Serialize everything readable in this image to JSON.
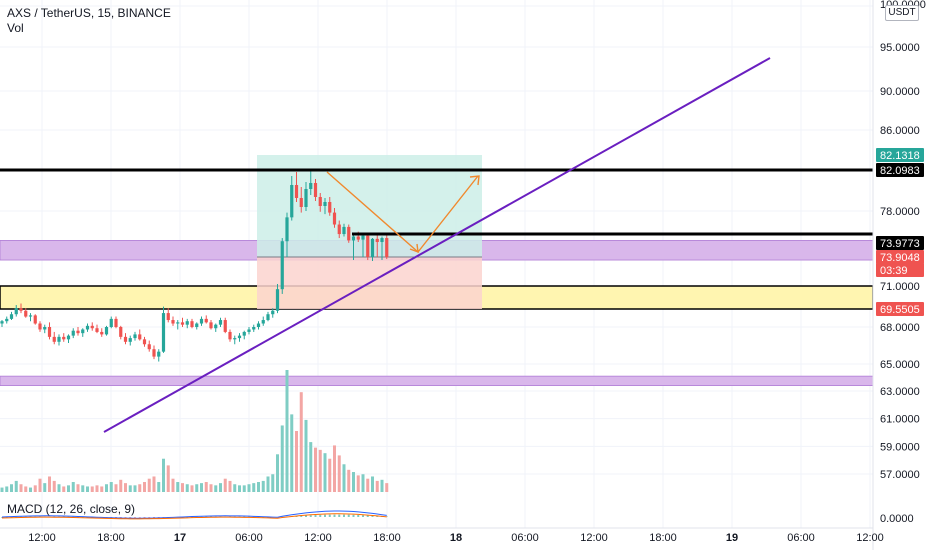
{
  "header": {
    "symbol": "AXS / TetherUS, 15, BINANCE",
    "volume_label": "Vol"
  },
  "macd_label": "MACD (12, 26, close, 9)",
  "price_axis": {
    "unit": "USDT",
    "ticks": [
      {
        "price": 100,
        "label": "100.0000"
      },
      {
        "price": 95,
        "label": "95.0000"
      },
      {
        "price": 90,
        "label": "90.0000"
      },
      {
        "price": 86,
        "label": "86.0000"
      },
      {
        "price": 78,
        "label": "78.0000"
      },
      {
        "price": 71,
        "label": "71.0000"
      },
      {
        "price": 68,
        "label": "68.0000"
      },
      {
        "price": 65,
        "label": "65.0000"
      },
      {
        "price": 63,
        "label": "63.0000"
      },
      {
        "price": 61,
        "label": "61.0000"
      },
      {
        "price": 59,
        "label": "59.0000"
      },
      {
        "price": 57,
        "label": "57.0000"
      }
    ],
    "macd_tick": "0.0000"
  },
  "price_badges": [
    {
      "label": "82.1318",
      "bg": "#26a69a",
      "fg": "#ffffff"
    },
    {
      "label": "82.0983",
      "bg": "#000000",
      "fg": "#ffffff"
    },
    {
      "label": "73.9773",
      "bg": "#000000",
      "fg": "#ffffff"
    },
    {
      "label": "73.9048",
      "bg": "#ef5350",
      "fg": "#ffffff"
    },
    {
      "label": "03:39",
      "bg": "#ef5350",
      "fg": "#ffffff"
    },
    {
      "label": "69.5505",
      "bg": "#ef5350",
      "fg": "#ffffff"
    }
  ],
  "time_axis": {
    "labels": [
      "12:00",
      "18:00",
      "17",
      "06:00",
      "12:00",
      "18:00",
      "18",
      "06:00",
      "12:00",
      "18:00",
      "19",
      "06:00",
      "12:00"
    ]
  },
  "colors": {
    "up": "#26a69a",
    "down": "#ef5350",
    "trendline": "#6a1fc0",
    "arrow": "#f0892e",
    "zone_purple": "#d9b7eb",
    "zone_yellow": "#fff5b0",
    "target_zone": "#cdeee8",
    "stop_zone": "#fcd3cf"
  },
  "chart_data": {
    "type": "candlestick",
    "symbol": "AXS / TetherUS",
    "interval": "15",
    "exchange": "BINANCE",
    "price_levels": [
      82.0983,
      73.9773,
      71.0,
      69.5505
    ],
    "zones": [
      {
        "kind": "purple",
        "from": 73.6,
        "to": 74.3
      },
      {
        "kind": "yellow",
        "from": 69.5505,
        "to": 71.0
      },
      {
        "kind": "purple",
        "from": 63.4,
        "to": 64.1
      }
    ],
    "position": {
      "entry": 73.9048,
      "target": 82.1318,
      "stop": 69.5505
    },
    "trendline": [
      {
        "time": "16 21:00",
        "price": 60.3
      },
      {
        "time": "19 04:00",
        "price": 94.3
      }
    ],
    "last_price": 73.9048,
    "current_high": 82.1318,
    "candles": [
      [
        68.3,
        68.6,
        68.0,
        68.5
      ],
      [
        68.5,
        68.9,
        68.3,
        68.7
      ],
      [
        68.7,
        69.3,
        68.6,
        69.1
      ],
      [
        69.1,
        69.8,
        68.9,
        69.6
      ],
      [
        69.6,
        69.9,
        69.2,
        69.4
      ],
      [
        69.4,
        69.6,
        68.8,
        68.9
      ],
      [
        68.9,
        69.2,
        68.5,
        69.0
      ],
      [
        69.0,
        69.1,
        68.2,
        68.3
      ],
      [
        68.3,
        68.5,
        67.6,
        67.8
      ],
      [
        67.8,
        68.2,
        67.5,
        68.0
      ],
      [
        68.0,
        68.4,
        67.0,
        67.2
      ],
      [
        67.2,
        67.6,
        66.6,
        66.8
      ],
      [
        66.8,
        67.4,
        66.5,
        67.2
      ],
      [
        67.2,
        67.5,
        66.8,
        67.0
      ],
      [
        67.0,
        67.4,
        66.7,
        67.3
      ],
      [
        67.3,
        67.9,
        67.1,
        67.7
      ],
      [
        67.7,
        68.0,
        67.3,
        67.5
      ],
      [
        67.5,
        67.9,
        67.2,
        67.8
      ],
      [
        67.8,
        68.3,
        67.6,
        68.1
      ],
      [
        68.1,
        68.4,
        67.7,
        67.9
      ],
      [
        67.9,
        68.2,
        67.5,
        67.6
      ],
      [
        67.6,
        67.9,
        67.2,
        67.4
      ],
      [
        67.4,
        68.1,
        67.3,
        68.0
      ],
      [
        68.0,
        68.9,
        67.9,
        68.7
      ],
      [
        68.7,
        68.9,
        67.9,
        68.0
      ],
      [
        68.0,
        68.1,
        67.0,
        67.2
      ],
      [
        67.2,
        67.5,
        66.6,
        66.8
      ],
      [
        66.8,
        67.3,
        66.5,
        67.1
      ],
      [
        67.1,
        67.6,
        66.9,
        67.4
      ],
      [
        67.4,
        67.8,
        66.9,
        67.0
      ],
      [
        67.0,
        67.2,
        66.4,
        66.6
      ],
      [
        66.6,
        66.9,
        66.0,
        66.2
      ],
      [
        66.2,
        66.5,
        65.4,
        65.6
      ],
      [
        65.6,
        66.2,
        65.2,
        66.0
      ],
      [
        66.0,
        69.7,
        65.9,
        69.2
      ],
      [
        69.2,
        69.6,
        68.4,
        68.6
      ],
      [
        68.6,
        68.9,
        68.1,
        68.3
      ],
      [
        68.3,
        68.6,
        67.8,
        68.4
      ],
      [
        68.4,
        68.8,
        68.0,
        68.2
      ],
      [
        68.2,
        68.7,
        67.9,
        68.5
      ],
      [
        68.5,
        68.7,
        67.9,
        68.0
      ],
      [
        68.0,
        68.4,
        67.8,
        68.3
      ],
      [
        68.3,
        68.9,
        68.1,
        68.7
      ],
      [
        68.7,
        69.0,
        68.3,
        68.4
      ],
      [
        68.4,
        68.6,
        67.8,
        67.9
      ],
      [
        67.9,
        68.3,
        67.6,
        68.2
      ],
      [
        68.2,
        68.8,
        68.0,
        68.6
      ],
      [
        68.6,
        68.8,
        67.5,
        67.6
      ],
      [
        67.6,
        67.8,
        66.8,
        67.0
      ],
      [
        67.0,
        67.3,
        66.6,
        67.1
      ],
      [
        67.1,
        67.5,
        66.8,
        67.3
      ],
      [
        67.3,
        67.7,
        67.0,
        67.6
      ],
      [
        67.6,
        68.0,
        67.4,
        67.8
      ],
      [
        67.8,
        68.2,
        67.6,
        68.0
      ],
      [
        68.0,
        68.5,
        67.8,
        68.3
      ],
      [
        68.3,
        68.9,
        68.1,
        68.6
      ],
      [
        68.6,
        69.3,
        68.5,
        69.1
      ],
      [
        69.1,
        69.6,
        68.8,
        69.4
      ],
      [
        69.4,
        71.2,
        69.2,
        70.8
      ],
      [
        70.8,
        74.6,
        70.5,
        74.2
      ],
      [
        74.2,
        77.8,
        73.9,
        77.2
      ],
      [
        77.2,
        81.5,
        76.8,
        80.6
      ],
      [
        80.6,
        81.9,
        78.9,
        79.3
      ],
      [
        79.3,
        80.4,
        77.8,
        78.4
      ],
      [
        78.4,
        80.9,
        78.0,
        80.2
      ],
      [
        80.2,
        82.1,
        79.6,
        80.8
      ],
      [
        80.8,
        81.2,
        79.0,
        79.4
      ],
      [
        79.4,
        79.8,
        77.9,
        78.5
      ],
      [
        78.5,
        79.3,
        77.6,
        78.9
      ],
      [
        78.9,
        79.4,
        77.4,
        77.8
      ],
      [
        77.8,
        78.3,
        75.9,
        76.3
      ],
      [
        76.3,
        76.8,
        74.6,
        75.1
      ],
      [
        75.1,
        76.4,
        74.8,
        76.0
      ],
      [
        76.0,
        76.3,
        74.0,
        74.3
      ],
      [
        74.3,
        75.1,
        73.6,
        74.8
      ],
      [
        74.8,
        75.4,
        74.1,
        74.4
      ],
      [
        74.4,
        75.1,
        73.9,
        74.9
      ],
      [
        74.9,
        75.2,
        73.6,
        73.9
      ],
      [
        73.9,
        74.6,
        73.5,
        74.5
      ],
      [
        74.5,
        75.0,
        73.9,
        74.1
      ],
      [
        74.1,
        74.8,
        73.6,
        74.6
      ],
      [
        74.6,
        75.0,
        73.7,
        73.9
      ]
    ],
    "volume": [
      4,
      5,
      7,
      10,
      7,
      5,
      4,
      6,
      12,
      8,
      14,
      10,
      7,
      5,
      6,
      9,
      7,
      6,
      5,
      5,
      6,
      5,
      7,
      9,
      7,
      11,
      8,
      6,
      6,
      7,
      9,
      12,
      14,
      9,
      30,
      24,
      12,
      9,
      8,
      7,
      6,
      7,
      8,
      9,
      7,
      6,
      8,
      12,
      10,
      7,
      6,
      6,
      7,
      8,
      9,
      10,
      14,
      16,
      34,
      60,
      110,
      70,
      55,
      90,
      65,
      45,
      40,
      38,
      35,
      30,
      42,
      33,
      25,
      20,
      18,
      15,
      16,
      12,
      14,
      10,
      11,
      8
    ]
  }
}
